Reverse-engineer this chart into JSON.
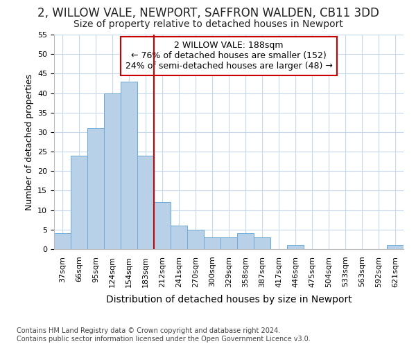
{
  "title_line1": "2, WILLOW VALE, NEWPORT, SAFFRON WALDEN, CB11 3DD",
  "title_line2": "Size of property relative to detached houses in Newport",
  "xlabel": "Distribution of detached houses by size in Newport",
  "ylabel": "Number of detached properties",
  "categories": [
    "37sqm",
    "66sqm",
    "95sqm",
    "124sqm",
    "154sqm",
    "183sqm",
    "212sqm",
    "241sqm",
    "270sqm",
    "300sqm",
    "329sqm",
    "358sqm",
    "387sqm",
    "417sqm",
    "446sqm",
    "475sqm",
    "504sqm",
    "533sqm",
    "563sqm",
    "592sqm",
    "621sqm"
  ],
  "values": [
    4,
    24,
    31,
    40,
    43,
    24,
    12,
    6,
    5,
    3,
    3,
    4,
    3,
    0,
    1,
    0,
    0,
    0,
    0,
    0,
    1
  ],
  "bar_color": "#b8d0e8",
  "bar_edge_color": "#6aaad4",
  "vline_color": "#cc0000",
  "vline_position": 5.5,
  "ylim_min": 0,
  "ylim_max": 55,
  "yticks": [
    0,
    5,
    10,
    15,
    20,
    25,
    30,
    35,
    40,
    45,
    50,
    55
  ],
  "annotation_text": "2 WILLOW VALE: 188sqm\n← 76% of detached houses are smaller (152)\n24% of semi-detached houses are larger (48) →",
  "annotation_box_color": "#cc0000",
  "footnote": "Contains HM Land Registry data © Crown copyright and database right 2024.\nContains public sector information licensed under the Open Government Licence v3.0.",
  "title1_fontsize": 12,
  "title2_fontsize": 10,
  "ylabel_fontsize": 9,
  "xlabel_fontsize": 10,
  "tick_fontsize": 8,
  "annotation_fontsize": 9,
  "footnote_fontsize": 7,
  "background_color": "#ffffff",
  "grid_color": "#c8d8eb"
}
